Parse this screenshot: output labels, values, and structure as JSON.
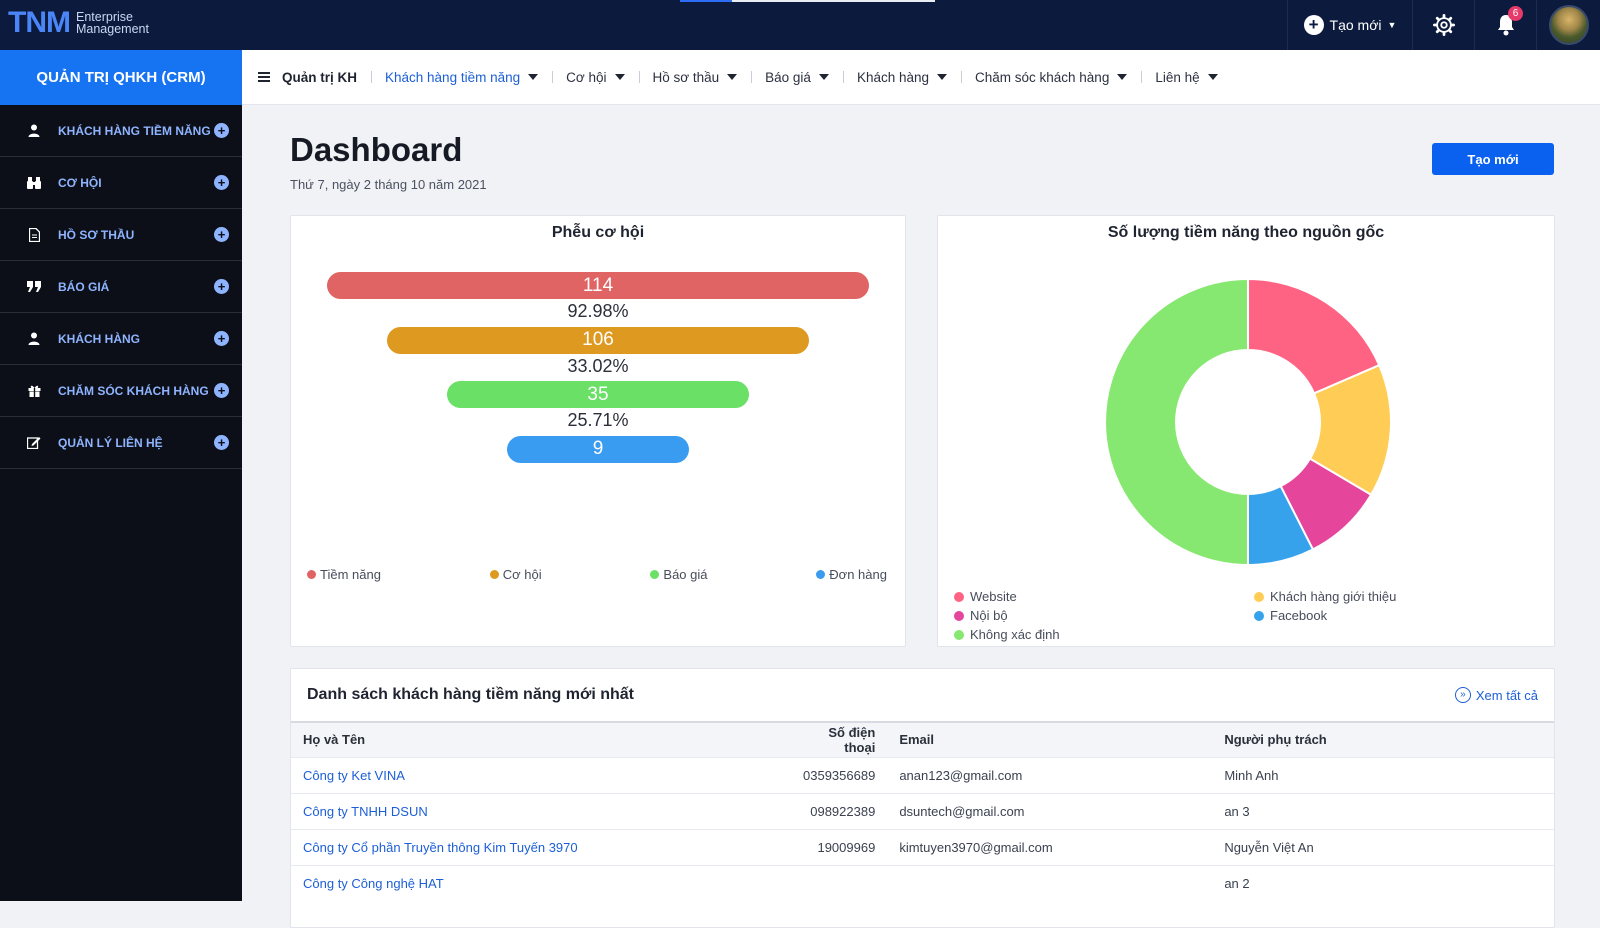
{
  "topbar": {
    "logo_main": "TNM",
    "logo_line1": "Enterprise",
    "logo_line2": "Management",
    "create_label": "Tạo mới",
    "notification_count": "6"
  },
  "sidebar": {
    "title": "QUẢN TRỊ QHKH (CRM)",
    "items": [
      {
        "label": "KHÁCH HÀNG TIỀM NĂNG",
        "icon": "user-icon"
      },
      {
        "label": "CƠ HỘI",
        "icon": "binoculars-icon"
      },
      {
        "label": "HỒ SƠ THẦU",
        "icon": "document-icon"
      },
      {
        "label": "BÁO GIÁ",
        "icon": "quote-icon"
      },
      {
        "label": "KHÁCH HÀNG",
        "icon": "user-icon"
      },
      {
        "label": "CHĂM SÓC KHÁCH HÀNG",
        "icon": "gift-icon"
      },
      {
        "label": "QUẢN LÝ LIÊN HỆ",
        "icon": "edit-icon"
      }
    ]
  },
  "subnav": {
    "items": [
      "Quản trị KH",
      "Khách hàng tiềm năng",
      "Cơ hội",
      "Hồ sơ thầu",
      "Báo giá",
      "Khách hàng",
      "Chăm sóc khách hàng",
      "Liên hệ"
    ]
  },
  "page": {
    "title": "Dashboard",
    "date": "Thứ 7, ngày 2 tháng 10 năm 2021",
    "create_button": "Tạo mới"
  },
  "chart_data": [
    {
      "type": "funnel",
      "title": "Phễu cơ hội",
      "stages": [
        {
          "name": "Tiềm năng",
          "value": 114,
          "color": "#e06464"
        },
        {
          "name": "Cơ hội",
          "value": 106,
          "color": "#de9920"
        },
        {
          "name": "Báo giá",
          "value": 35,
          "color": "#6ae066"
        },
        {
          "name": "Đơn hàng",
          "value": 9,
          "color": "#3a9cf0"
        }
      ],
      "conversion_labels": [
        "92.98%",
        "33.02%",
        "25.71%"
      ]
    },
    {
      "type": "pie",
      "title": "Số lượng tiềm năng theo nguồn gốc",
      "donut": true,
      "slices": [
        {
          "name": "Website",
          "value": 18.5,
          "color": "#ff6384"
        },
        {
          "name": "Khách hàng giới thiệu",
          "value": 15,
          "color": "#ffcd56"
        },
        {
          "name": "Nội bộ",
          "value": 9,
          "color": "#e5459b"
        },
        {
          "name": "Facebook",
          "value": 7.5,
          "color": "#36a2eb"
        },
        {
          "name": "Không xác định",
          "value": 50,
          "color": "#86e870"
        }
      ]
    }
  ],
  "leads_table": {
    "title": "Danh sách khách hàng tiềm năng mới nhất",
    "view_all": "Xem tất cả",
    "columns": [
      "Họ và Tên",
      "Số điện thoại",
      "Email",
      "Người phụ trách"
    ],
    "rows": [
      [
        "Công ty Ket VINA",
        "0359356689",
        "anan123@gmail.com",
        "Minh Anh"
      ],
      [
        "Công ty TNHH DSUN",
        "098922389",
        "dsuntech@gmail.com",
        "an 3"
      ],
      [
        "Công ty Cổ phần Truyền thông Kim Tuyến 3970",
        "19009969",
        "kimtuyen3970@gmail.com",
        "Nguyễn Việt An"
      ],
      [
        "Công ty Công nghệ HAT",
        "",
        "",
        "an 2"
      ]
    ]
  }
}
